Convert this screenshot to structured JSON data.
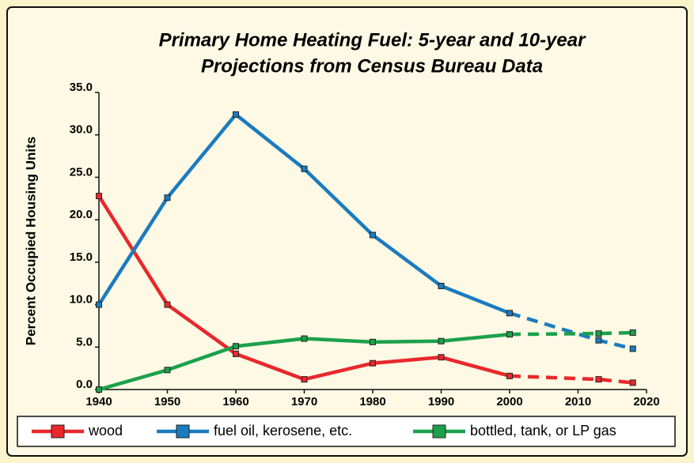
{
  "chart_data": {
    "type": "line",
    "title": [
      "Primary Home Heating Fuel: 5-year and 10-year",
      "Projections from Census Bureau Data"
    ],
    "y_label": "Percent Occupied Housing Units",
    "x": [
      1940,
      1950,
      1960,
      1970,
      1980,
      1990,
      2000,
      2013,
      2018
    ],
    "dashed_after": 2000,
    "series": [
      {
        "name": "wood",
        "color": "#e8282b",
        "values": [
          22.8,
          10.0,
          4.2,
          1.2,
          3.1,
          3.8,
          1.6,
          1.2,
          0.8
        ]
      },
      {
        "name": "fuel oil, kerosene, etc.",
        "color": "#1b7bbf",
        "values": [
          10.0,
          22.6,
          32.4,
          26.0,
          18.2,
          12.2,
          9.0,
          5.8,
          4.8
        ]
      },
      {
        "name": "bottled, tank, or LP gas",
        "color": "#1ca14b",
        "values": [
          0.0,
          2.3,
          5.1,
          6.0,
          5.6,
          5.7,
          6.5,
          6.6,
          6.7
        ]
      }
    ],
    "xlim": [
      1940,
      2020
    ],
    "xticks": [
      1940,
      1950,
      1960,
      1970,
      1980,
      1990,
      2000,
      2010,
      2020
    ],
    "ylim": [
      0,
      35
    ],
    "yticks": [
      {
        "value": 0,
        "label": "0.0"
      },
      {
        "value": 5,
        "label": "5.0"
      },
      {
        "value": 10,
        "label": "10.0"
      },
      {
        "value": 15,
        "label": "15.0"
      },
      {
        "value": 20,
        "label": "20.0"
      },
      {
        "value": 25,
        "label": "25.0"
      },
      {
        "value": 30,
        "label": "30.0"
      },
      {
        "value": 35,
        "label": "35.0"
      }
    ],
    "legend": "bottom"
  }
}
